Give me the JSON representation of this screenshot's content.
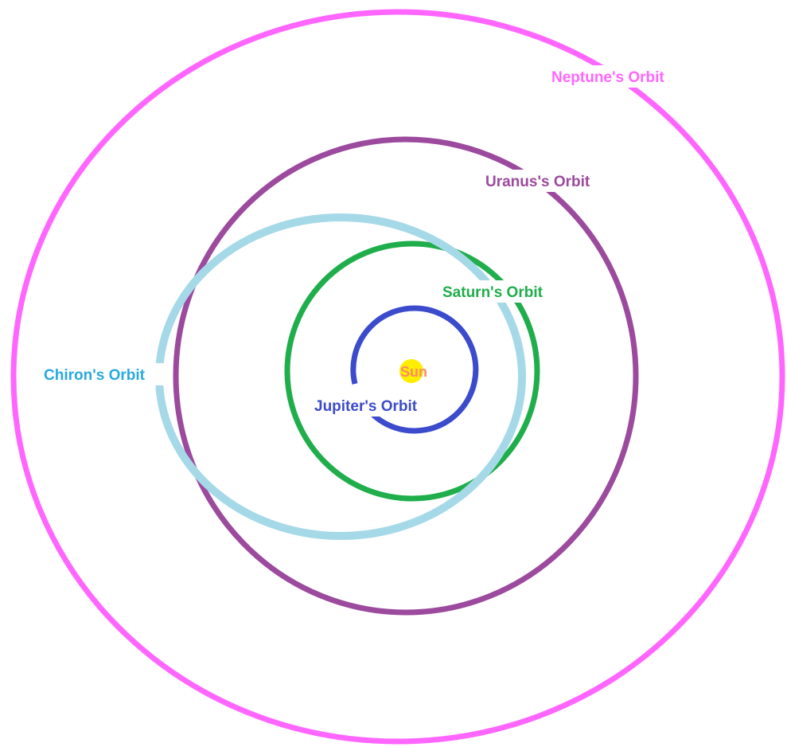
{
  "diagram": {
    "sun": {
      "label": "Sun",
      "color": "#ffee00",
      "label_color": "#ff8a65"
    },
    "orbits": [
      {
        "key": "neptune",
        "label": "Neptune's Orbit",
        "color": "#ff66ff"
      },
      {
        "key": "uranus",
        "label": "Uranus's Orbit",
        "color": "#9c4a9e"
      },
      {
        "key": "chiron",
        "label": "Chiron's Orbit",
        "color": "#a6d9e8",
        "label_color": "#29a9e0"
      },
      {
        "key": "saturn",
        "label": "Saturn's Orbit",
        "color": "#1fae4b"
      },
      {
        "key": "jupiter",
        "label": "Jupiter's Orbit",
        "color": "#3b4bcc"
      }
    ]
  }
}
